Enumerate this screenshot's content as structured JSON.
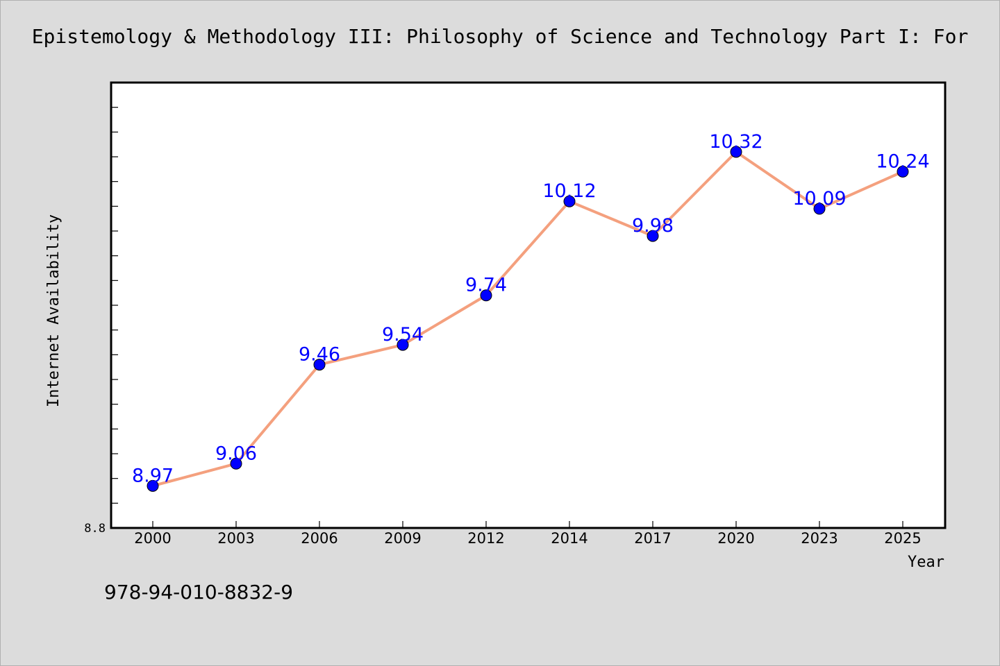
{
  "footer": {
    "isbn": "978-94-010-8832-9"
  },
  "colors": {
    "background": "#dcdcdc",
    "plot_background": "#ffffff",
    "line": "#f4a07e",
    "marker": "#0000ff",
    "data_label": "#0000ff"
  },
  "chart_data": {
    "type": "line",
    "title": "Epistemology & Methodology III: Philosophy of Science and Technology Part I: For",
    "xlabel": "Year",
    "ylabel": "Internet Availability",
    "categories": [
      "2000",
      "2003",
      "2006",
      "2009",
      "2012",
      "2014",
      "2017",
      "2020",
      "2023",
      "2025"
    ],
    "series": [
      {
        "values": [
          8.97,
          9.06,
          9.46,
          9.54,
          9.74,
          10.12,
          9.98,
          10.32,
          10.09,
          10.24
        ],
        "labels": [
          "8.97",
          "9.06",
          "9.46",
          "9.54",
          "9.74",
          "10.12",
          "9.98",
          "10.32",
          "10.09",
          "10.24"
        ]
      }
    ],
    "ylim": [
      8.8,
      10.6
    ],
    "y_tick_labels": [
      "8.8"
    ],
    "y_minor_step": 0.1,
    "grid": false,
    "legend": "none"
  }
}
